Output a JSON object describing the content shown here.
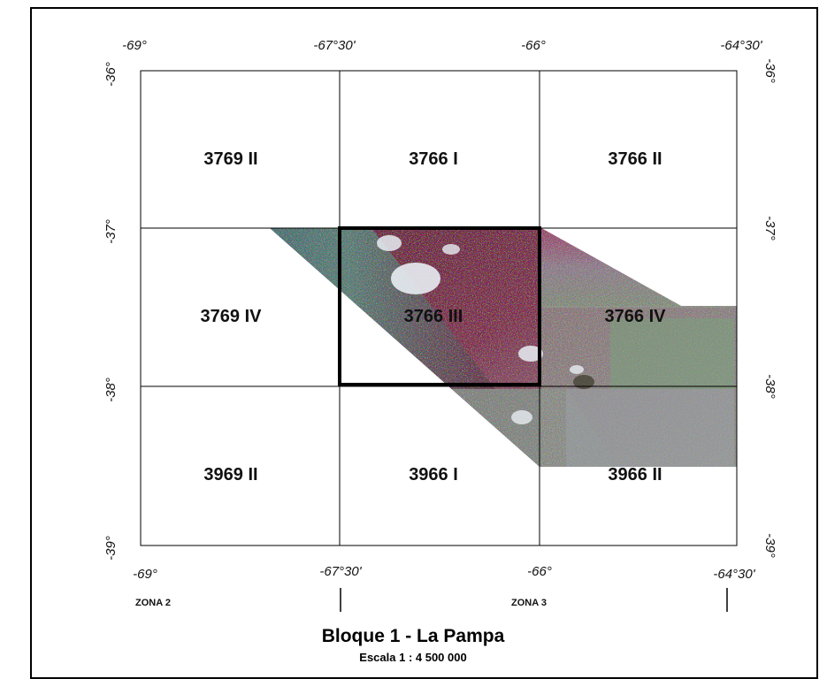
{
  "map": {
    "title": "Bloque 1 - La Pampa",
    "scale": "Escala 1 : 4 500 000",
    "longitude_labels": [
      "-69°",
      "-67°30'",
      "-66°",
      "-64°30'"
    ],
    "latitude_labels": [
      "-36°",
      "-37°",
      "-38°",
      "-39°"
    ],
    "zones": [
      "ZONA 2",
      "ZONA 3"
    ],
    "sheets": [
      [
        "3769 II",
        "3766 I",
        "3766 II"
      ],
      [
        "3769 IV",
        "3766 III",
        "3766 IV"
      ],
      [
        "3969 II",
        "3966 I",
        "3966 II"
      ]
    ],
    "highlighted_sheet": "3766 III",
    "imagery": {
      "type": "satellite false-color strip",
      "colors": {
        "maroon": "#6b1a2e",
        "magenta": "#a0456e",
        "teal": "#3a7a78",
        "green": "#6f8f5a",
        "gray": "#8e8a92",
        "cloud": "#e8edf3"
      }
    }
  }
}
